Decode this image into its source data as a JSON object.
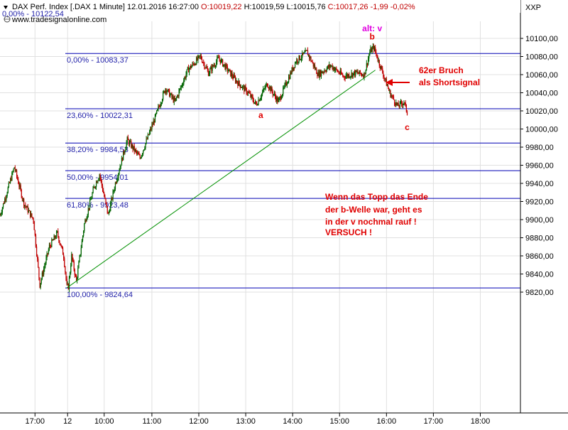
{
  "header": {
    "symbol": "DAX Perf. Index [.DAX",
    "interval": "1 Minute]",
    "datetime": "12.01.2016 16:27:00",
    "open": "O:10019,22",
    "high": "H:10019,59",
    "low": "L:10015,76",
    "close": "C:10017,26",
    "change": "-1,99",
    "change_pct": "-0,02%",
    "site": "www.tradesignalonline.com",
    "corner_label": "XXP"
  },
  "colors": {
    "up_candle": "#006400",
    "down_candle": "#c00000",
    "fib_line": "#0000b4",
    "trendline": "#009000",
    "annotation": "#e00000",
    "wave_label_alt": "#e000e0",
    "grid": "#e0e0e0"
  },
  "chart_data": {
    "type": "candlestick",
    "instrument": "DAX Perf. Index",
    "interval": "1 Minute",
    "ylim": [
      9810,
      10115
    ],
    "y_ticks": [
      "10100,00",
      "10080,00",
      "10060,00",
      "10040,00",
      "10020,00",
      "10000,00",
      "9980,00",
      "9960,00",
      "9940,00",
      "9920,00",
      "9900,00",
      "9880,00",
      "9860,00",
      "9840,00",
      "9820,00"
    ],
    "y_tick_values": [
      10100,
      10080,
      10060,
      10040,
      10020,
      10000,
      9980,
      9960,
      9940,
      9920,
      9900,
      9880,
      9860,
      9840,
      9820
    ],
    "x_ticks": [
      {
        "label": "17:00",
        "idx": 44
      },
      {
        "label": "12",
        "idx": 85
      },
      {
        "label": "10:00",
        "idx": 131
      },
      {
        "label": "11:00",
        "idx": 191
      },
      {
        "label": "12:00",
        "idx": 250
      },
      {
        "label": "13:00",
        "idx": 309
      },
      {
        "label": "14:00",
        "idx": 368
      },
      {
        "label": "15:00",
        "idx": 427
      },
      {
        "label": "16:00",
        "idx": 486
      },
      {
        "label": "17:00",
        "idx": 545
      },
      {
        "label": "18:00",
        "idx": 604
      }
    ],
    "price_path": [
      [
        0,
        9905
      ],
      [
        18,
        9958
      ],
      [
        30,
        9918
      ],
      [
        42,
        9900
      ],
      [
        50,
        9828
      ],
      [
        62,
        9870
      ],
      [
        72,
        9885
      ],
      [
        80,
        9860
      ],
      [
        84,
        9826
      ],
      [
        86,
        9826
      ],
      [
        90,
        9860
      ],
      [
        96,
        9832
      ],
      [
        106,
        9895
      ],
      [
        118,
        9935
      ],
      [
        125,
        9950
      ],
      [
        136,
        9905
      ],
      [
        145,
        9940
      ],
      [
        160,
        9988
      ],
      [
        176,
        9968
      ],
      [
        194,
        10010
      ],
      [
        208,
        10045
      ],
      [
        220,
        10030
      ],
      [
        236,
        10065
      ],
      [
        252,
        10080
      ],
      [
        262,
        10062
      ],
      [
        275,
        10078
      ],
      [
        298,
        10052
      ],
      [
        312,
        10040
      ],
      [
        322,
        10027
      ],
      [
        336,
        10050
      ],
      [
        350,
        10030
      ],
      [
        372,
        10075
      ],
      [
        386,
        10085
      ],
      [
        400,
        10060
      ],
      [
        416,
        10070
      ],
      [
        432,
        10058
      ],
      [
        448,
        10062
      ],
      [
        458,
        10060
      ],
      [
        465,
        10085
      ],
      [
        470,
        10090
      ],
      [
        478,
        10070
      ],
      [
        490,
        10040
      ],
      [
        500,
        10025
      ],
      [
        508,
        10030
      ],
      [
        512,
        10018
      ]
    ],
    "candle_count": 513,
    "fib_levels": [
      {
        "label": "0,00% - 10083,37",
        "value": 10083.37
      },
      {
        "label": "23,60% - 10022,31",
        "value": 10022.31
      },
      {
        "label": "38,20% - 9984,53",
        "value": 9984.53
      },
      {
        "label": "50,00% - 9954,01",
        "value": 9954.01
      },
      {
        "label": "61,80% - 9923,48",
        "value": 9923.48
      },
      {
        "label": "100,00% - 9824,64",
        "value": 9824.64
      }
    ],
    "top_cut_label": "0,00% - 10122,54",
    "trendline": {
      "start": [
        84,
        9824.64
      ],
      "end": [
        472,
        10065
      ]
    },
    "wave_labels": [
      {
        "text": "alt: v",
        "color": "#e000e0",
        "idx": 468,
        "value": 10108
      },
      {
        "text": "b",
        "color": "#e00000",
        "idx": 468,
        "value": 10099
      },
      {
        "text": "a",
        "color": "#e00000",
        "idx": 328,
        "value": 10012
      },
      {
        "text": "c",
        "color": "#e00000",
        "idx": 512,
        "value": 9999
      }
    ],
    "annotations": [
      {
        "lines": [
          "62er Bruch",
          "als Shortsignal"
        ]
      },
      {
        "lines": [
          "Wenn das Topp das Ende",
          "der b-Welle war, geht es",
          "in der v nochmal rauf !",
          "VERSUCH !"
        ]
      }
    ]
  }
}
